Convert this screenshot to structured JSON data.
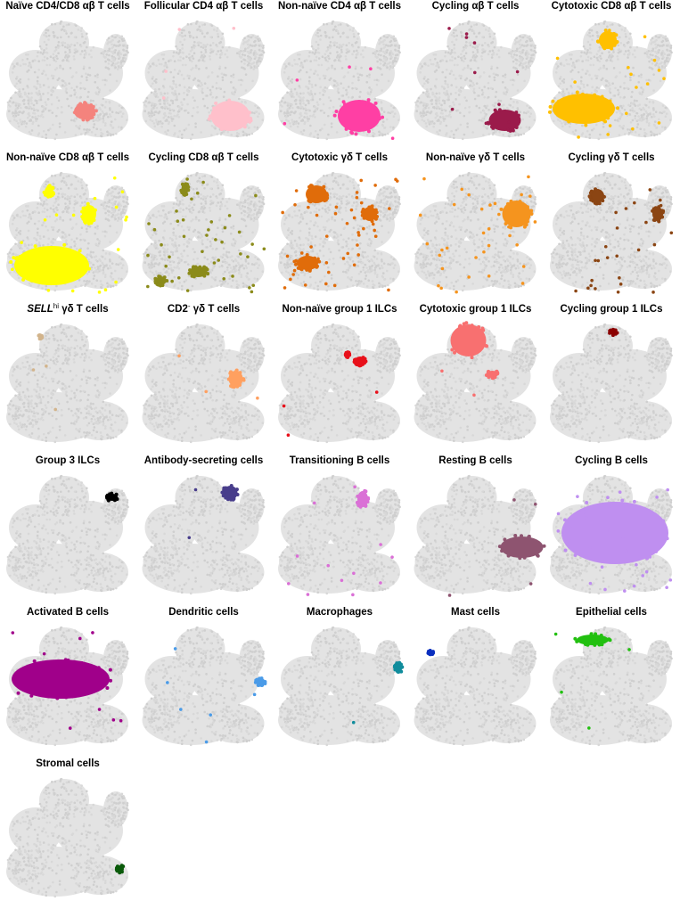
{
  "panels": [
    {
      "title": "Naïve CD4/CD8 αβ T cells",
      "color": "#f4837d"
    },
    {
      "title": "Follicular CD4 αβ T cells",
      "color": "#ffc0cb"
    },
    {
      "title": "Non-naïve CD4 αβ T cells",
      "color": "#ff3fa4"
    },
    {
      "title": "Cycling αβ T cells",
      "color": "#9b1b4b"
    },
    {
      "title": "Cytotoxic CD8 αβ T cells",
      "color": "#ffc000"
    },
    {
      "title": "Non-naïve CD8 αβ T cells",
      "color": "#ffff00"
    },
    {
      "title": "Cycling CD8 αβ T cells",
      "color": "#8b8b1a"
    },
    {
      "title": "Cytotoxic γδ T cells",
      "color": "#e06c0a"
    },
    {
      "title": "Non-naïve γδ T cells",
      "color": "#f5941e"
    },
    {
      "title": "Cycling γδ T cells",
      "color": "#8b4513"
    },
    {
      "title": [
        {
          "text": "SELL",
          "style": "italic"
        },
        {
          "text": "hi",
          "style": "sup"
        },
        {
          "text": " γδ T cells",
          "style": "plain"
        }
      ],
      "color": "#d2b48c"
    },
    {
      "title": [
        {
          "text": "CD2",
          "style": "plain"
        },
        {
          "text": "-",
          "style": "sup"
        },
        {
          "text": " γδ T cells",
          "style": "plain"
        }
      ],
      "color": "#ffa060"
    },
    {
      "title": "Non-naïve group 1 ILCs",
      "color": "#e8101a"
    },
    {
      "title": "Cytotoxic group 1 ILCs",
      "color": "#f87070"
    },
    {
      "title": "Cycling group 1 ILCs",
      "color": "#8b0000"
    },
    {
      "title": "Group 3 ILCs",
      "color": "#000000"
    },
    {
      "title": "Antibody-secreting cells",
      "color": "#483d8b"
    },
    {
      "title": "Transitioning B cells",
      "color": "#da70d6"
    },
    {
      "title": "Resting B cells",
      "color": "#8e5470"
    },
    {
      "title": "Cycling B cells",
      "color": "#bf8ff0"
    },
    {
      "title": "Activated B cells",
      "color": "#a0008a"
    },
    {
      "title": "Dendritic cells",
      "color": "#4a9be8"
    },
    {
      "title": "Macrophages",
      "color": "#108c9c"
    },
    {
      "title": "Mast cells",
      "color": "#0a2fbf"
    },
    {
      "title": "Epithelial cells",
      "color": "#22c010"
    },
    {
      "title": "Stromal cells",
      "color": "#0a5a0a"
    }
  ]
}
